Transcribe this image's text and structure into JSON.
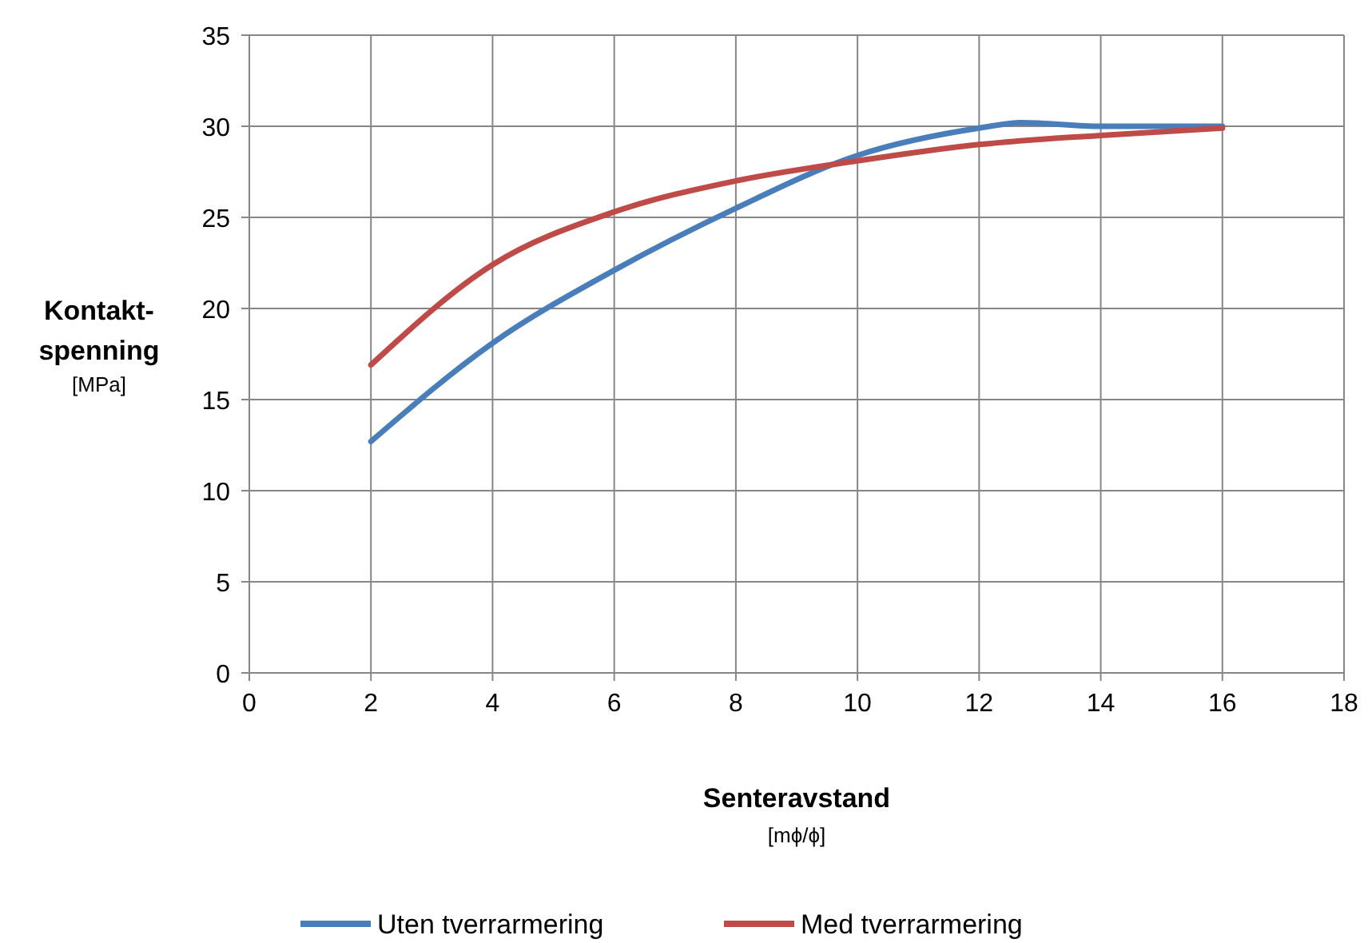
{
  "chart_data": {
    "type": "line",
    "xlabel": "Senteravstand\n[mϕ/ϕ]",
    "ylabel": "Kontakt-\nspenning\n[MPa]",
    "xlim": [
      0,
      18
    ],
    "xticks": [
      0,
      2,
      4,
      6,
      8,
      10,
      12,
      14,
      16,
      18
    ],
    "ylim": [
      0,
      35
    ],
    "yticks": [
      0,
      5,
      10,
      15,
      20,
      25,
      30,
      35
    ],
    "grid": true,
    "legend": "bottom",
    "marker": "none",
    "line_style": "solid",
    "series": [
      {
        "name": "Uten tverrarmering",
        "color": "#4a7ebb",
        "x": [
          2,
          4,
          6,
          8,
          10,
          12,
          12.7,
          14,
          16
        ],
        "values": [
          12.7,
          18.1,
          22.1,
          25.5,
          28.4,
          29.9,
          30.2,
          30.0,
          30.0
        ]
      },
      {
        "name": "Med tverrarmering",
        "color": "#be4b48",
        "x": [
          2,
          4,
          6,
          8,
          10,
          12,
          14,
          16
        ],
        "values": [
          16.9,
          22.4,
          25.3,
          27.0,
          28.1,
          29.0,
          29.5,
          29.9
        ]
      }
    ]
  }
}
